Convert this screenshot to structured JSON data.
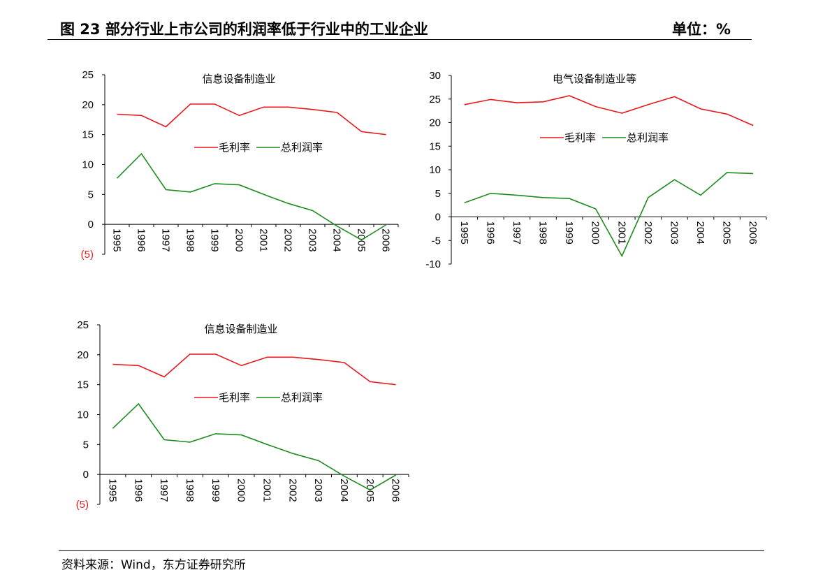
{
  "figure": {
    "title": "图 23  部分行业上市公司的利润率低于行业中的工业企业",
    "unit": "单位：%",
    "source": "资料来源：Wind，东方证券研究所"
  },
  "colors": {
    "gross_margin": "#e8191c",
    "profit_margin": "#1e8b1e",
    "negative_label": "#e8191c"
  },
  "chart_data": [
    {
      "type": "line",
      "title": "信息设备制造业",
      "x": [
        "1995",
        "1996",
        "1997",
        "1998",
        "1999",
        "2000",
        "2001",
        "2002",
        "2003",
        "2004",
        "2005",
        "2006"
      ],
      "yticks": [
        "25",
        "20",
        "15",
        "10",
        "5",
        "0",
        "(5)"
      ],
      "ylim": [
        -5,
        25
      ],
      "legend_position": "center",
      "series": [
        {
          "name": "毛利率",
          "values": [
            18.4,
            18.2,
            16.3,
            20.1,
            20.1,
            18.2,
            19.6,
            19.6,
            19.2,
            18.7,
            15.5,
            15.0
          ]
        },
        {
          "name": "总利润率",
          "values": [
            7.7,
            11.8,
            5.8,
            5.4,
            6.8,
            6.6,
            5.0,
            3.5,
            2.3,
            -0.3,
            -2.6,
            -0.1
          ]
        }
      ]
    },
    {
      "type": "line",
      "title": "电气设备制造业等",
      "x": [
        "1995",
        "1996",
        "1997",
        "1998",
        "1999",
        "2000",
        "2001",
        "2002",
        "2003",
        "2004",
        "2005",
        "2006"
      ],
      "yticks": [
        "30",
        "25",
        "20",
        "15",
        "10",
        "5",
        "0",
        "-5",
        "-10"
      ],
      "ylim": [
        -10,
        30
      ],
      "legend_position": "center",
      "series": [
        {
          "name": "毛利率",
          "values": [
            23.8,
            24.9,
            24.2,
            24.4,
            25.7,
            23.4,
            22.0,
            23.8,
            25.5,
            22.9,
            21.8,
            19.4
          ]
        },
        {
          "name": "总利润率",
          "values": [
            3.0,
            5.0,
            4.6,
            4.1,
            3.9,
            1.7,
            -8.3,
            4.1,
            7.9,
            4.6,
            9.4,
            9.2
          ]
        }
      ]
    },
    {
      "type": "line",
      "title": "信息设备制造业",
      "x": [
        "1995",
        "1996",
        "1997",
        "1998",
        "1999",
        "2000",
        "2001",
        "2002",
        "2003",
        "2004",
        "2005",
        "2006"
      ],
      "yticks": [
        "25",
        "20",
        "15",
        "10",
        "5",
        "0",
        "(5)"
      ],
      "ylim": [
        -5,
        25
      ],
      "legend_position": "center",
      "series": [
        {
          "name": "毛利率",
          "values": [
            18.4,
            18.2,
            16.3,
            20.1,
            20.1,
            18.2,
            19.6,
            19.6,
            19.2,
            18.7,
            15.5,
            15.0
          ]
        },
        {
          "name": "总利润率",
          "values": [
            7.7,
            11.8,
            5.8,
            5.4,
            6.8,
            6.6,
            5.0,
            3.5,
            2.3,
            -0.3,
            -2.6,
            -0.1
          ]
        }
      ]
    }
  ]
}
